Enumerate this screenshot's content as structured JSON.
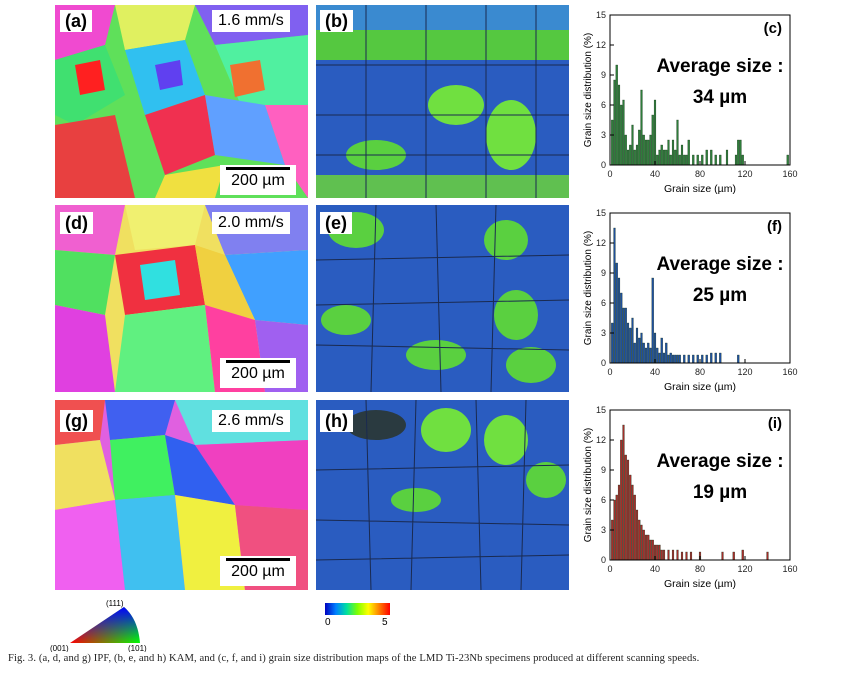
{
  "panels": {
    "a": {
      "label": "(a)",
      "speed": "1.6 mm/s",
      "scalebar": "200 µm"
    },
    "b": {
      "label": "(b)"
    },
    "c": {
      "label": "(c)"
    },
    "d": {
      "label": "(d)",
      "speed": "2.0 mm/s",
      "scalebar": "200 µm"
    },
    "e": {
      "label": "(e)"
    },
    "f": {
      "label": "(f)"
    },
    "g": {
      "label": "(g)",
      "speed": "2.6 mm/s",
      "scalebar": "200 µm"
    },
    "h": {
      "label": "(h)"
    },
    "i": {
      "label": "(i)"
    }
  },
  "legend": {
    "ipf": {
      "top": "(111)",
      "left": "(001)",
      "right": "(101)"
    },
    "kam": {
      "min": "0",
      "max": "5"
    }
  },
  "caption": "Fig. 3. (a, d, and g) IPF, (b, e, and h) KAM, and (c, f, and i) grain size distribution maps of the LMD Ti-23Nb specimens produced at different scanning speeds.",
  "chart_data": [
    {
      "type": "bar",
      "panel": "(c)",
      "annotation": [
        "Average size :",
        "34 µm"
      ],
      "xlabel": "Grain size (µm)",
      "ylabel": "Grain size distribution (%)",
      "xlim": [
        0,
        160
      ],
      "ylim": [
        0,
        15
      ],
      "xticks": [
        "0",
        "40",
        "80",
        "120",
        "160"
      ],
      "yticks": [
        "0",
        "3",
        "6",
        "9",
        "12",
        "15"
      ],
      "color": "#2e7d3a",
      "x": [
        2,
        4,
        6,
        8,
        10,
        12,
        14,
        16,
        18,
        20,
        22,
        24,
        26,
        28,
        30,
        32,
        34,
        36,
        38,
        40,
        42,
        44,
        46,
        48,
        50,
        52,
        54,
        56,
        58,
        60,
        62,
        64,
        66,
        68,
        70,
        74,
        78,
        82,
        86,
        90,
        94,
        98,
        104,
        112,
        114,
        116,
        118,
        158
      ],
      "values": [
        4.5,
        8.5,
        10,
        8,
        6,
        6.5,
        3,
        1.5,
        2,
        4,
        1.5,
        2,
        3.5,
        7.5,
        3,
        2.5,
        2.5,
        3,
        5,
        6.5,
        1,
        1.5,
        2,
        1.5,
        1.5,
        2.5,
        1,
        2.5,
        1.5,
        4.5,
        1,
        2,
        1,
        1,
        2.5,
        1,
        1,
        1,
        1.5,
        1.5,
        1,
        1,
        1.5,
        1,
        2.5,
        2.5,
        1,
        1
      ]
    },
    {
      "type": "bar",
      "panel": "(f)",
      "annotation": [
        "Average size :",
        "25 µm"
      ],
      "xlabel": "Grain size (µm)",
      "ylabel": "Grain size distribution (%)",
      "xlim": [
        0,
        160
      ],
      "ylim": [
        0,
        15
      ],
      "xticks": [
        "0",
        "40",
        "80",
        "120",
        "160"
      ],
      "yticks": [
        "0",
        "3",
        "6",
        "9",
        "12",
        "15"
      ],
      "color": "#1f4f9c",
      "x": [
        2,
        4,
        6,
        8,
        10,
        12,
        14,
        16,
        18,
        20,
        22,
        24,
        26,
        28,
        30,
        32,
        34,
        36,
        38,
        40,
        42,
        44,
        46,
        48,
        50,
        52,
        54,
        56,
        58,
        60,
        62,
        66,
        70,
        74,
        78,
        82,
        86,
        90,
        94,
        98,
        114
      ],
      "values": [
        4,
        13.5,
        10,
        8.5,
        7,
        5.5,
        5.5,
        4,
        3.5,
        4.5,
        2,
        3.5,
        2.5,
        3,
        2,
        1.5,
        2,
        1.5,
        8.5,
        3,
        1.5,
        1,
        2.5,
        1,
        2,
        0.8,
        1,
        0.8,
        0.8,
        0.8,
        0.8,
        0.8,
        0.8,
        0.8,
        0.8,
        0.8,
        0.8,
        1,
        1,
        1,
        0.8
      ]
    },
    {
      "type": "bar",
      "panel": "(i)",
      "annotation": [
        "Average size :",
        "19 µm"
      ],
      "xlabel": "Grain size (µm)",
      "ylabel": "Grain size distribution (%)",
      "xlim": [
        0,
        160
      ],
      "ylim": [
        0,
        15
      ],
      "xticks": [
        "0",
        "40",
        "80",
        "120",
        "160"
      ],
      "yticks": [
        "0",
        "3",
        "6",
        "9",
        "12",
        "15"
      ],
      "color": "#a42d2a",
      "x": [
        2,
        4,
        6,
        8,
        10,
        12,
        14,
        16,
        18,
        20,
        22,
        24,
        26,
        28,
        30,
        32,
        34,
        36,
        38,
        40,
        42,
        44,
        46,
        48,
        52,
        56,
        60,
        64,
        68,
        72,
        80,
        100,
        110,
        118,
        140
      ],
      "values": [
        4,
        6,
        6.5,
        7.5,
        12,
        13.5,
        10.5,
        10,
        8.5,
        7.5,
        6.5,
        5,
        4,
        3.5,
        3,
        2.5,
        2.5,
        2,
        2,
        1.5,
        1.5,
        1.5,
        1,
        1,
        1,
        1,
        1,
        0.8,
        0.8,
        0.8,
        0.8,
        0.8,
        0.8,
        1,
        0.8
      ]
    }
  ]
}
